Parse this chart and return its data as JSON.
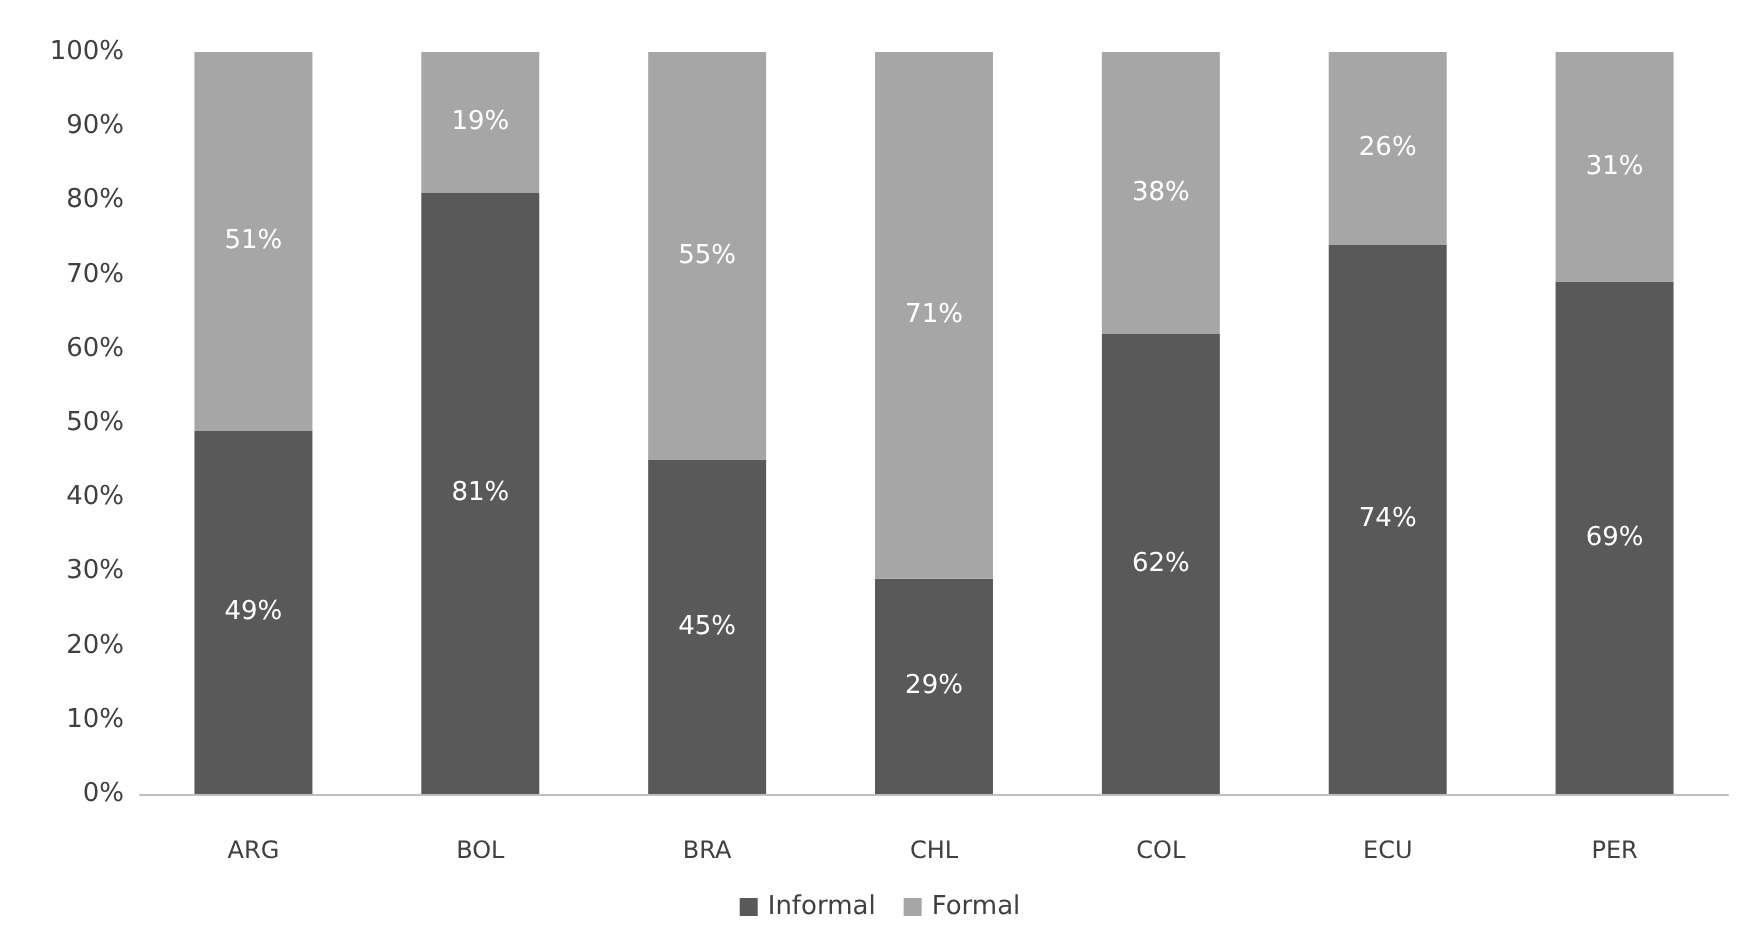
{
  "chart_data": {
    "type": "bar",
    "stacked": true,
    "categories": [
      "ARG",
      "BOL",
      "BRA",
      "CHL",
      "COL",
      "ECU",
      "PER"
    ],
    "series": [
      {
        "name": "Informal",
        "color": "#595959",
        "values": [
          49,
          81,
          45,
          29,
          62,
          74,
          69
        ],
        "value_labels": [
          "49%",
          "81%",
          "45%",
          "29%",
          "62%",
          "74%",
          "69%"
        ]
      },
      {
        "name": "Formal",
        "color": "#a6a6a6",
        "values": [
          51,
          19,
          55,
          71,
          38,
          26,
          31
        ],
        "value_labels": [
          "51%",
          "19%",
          "55%",
          "71%",
          "38%",
          "26%",
          "31%"
        ]
      }
    ],
    "ylim": [
      0,
      100
    ],
    "yticks": [
      {
        "value": 0,
        "label": "0%"
      },
      {
        "value": 10,
        "label": "10%"
      },
      {
        "value": 20,
        "label": "20%"
      },
      {
        "value": 30,
        "label": "30%"
      },
      {
        "value": 40,
        "label": "40%"
      },
      {
        "value": 50,
        "label": "50%"
      },
      {
        "value": 60,
        "label": "60%"
      },
      {
        "value": 70,
        "label": "70%"
      },
      {
        "value": 80,
        "label": "80%"
      },
      {
        "value": 90,
        "label": "90%"
      },
      {
        "value": 100,
        "label": "100%"
      }
    ],
    "grid": false,
    "legend": "bottom"
  }
}
